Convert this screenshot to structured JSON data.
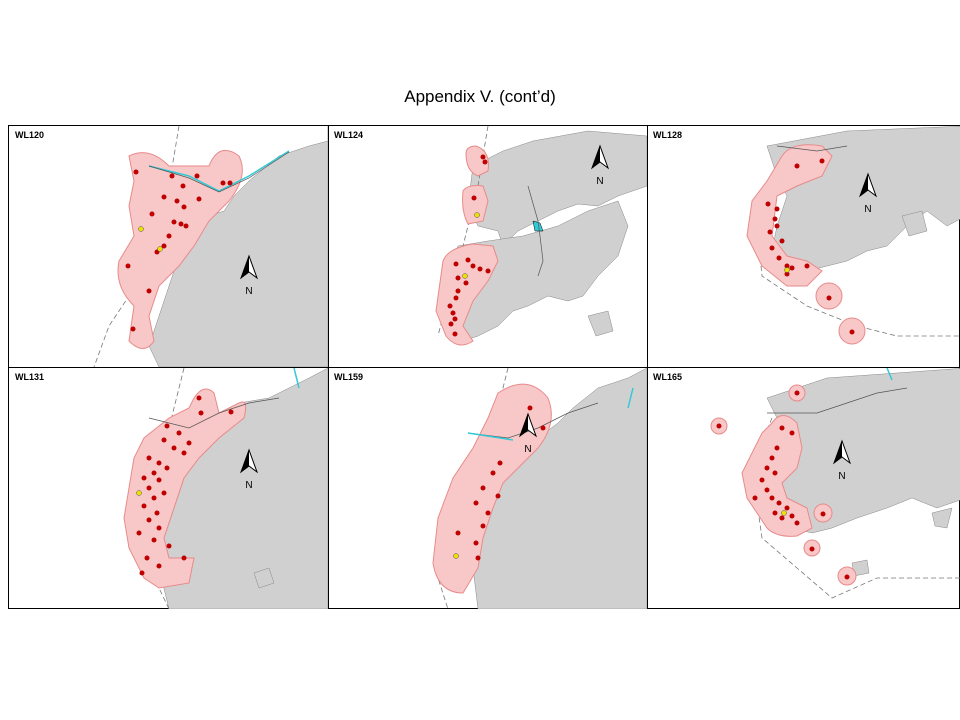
{
  "title": "Appendix V.  (cont’d)",
  "panels": [
    {
      "label": "WL120",
      "compass": "N"
    },
    {
      "label": "WL124",
      "compass": "N"
    },
    {
      "label": "WL128",
      "compass": "N"
    },
    {
      "label": "WL131",
      "compass": "N"
    },
    {
      "label": "WL159",
      "compass": "N"
    },
    {
      "label": "WL165",
      "compass": "N"
    }
  ],
  "colors": {
    "land": "#d0d0d0",
    "range": "#f8c8c8",
    "range_stroke": "#e88a8a",
    "locations": "#c00000",
    "yellow_point": "#f0e000",
    "channel": "#33c9d6",
    "road": "#555555"
  }
}
